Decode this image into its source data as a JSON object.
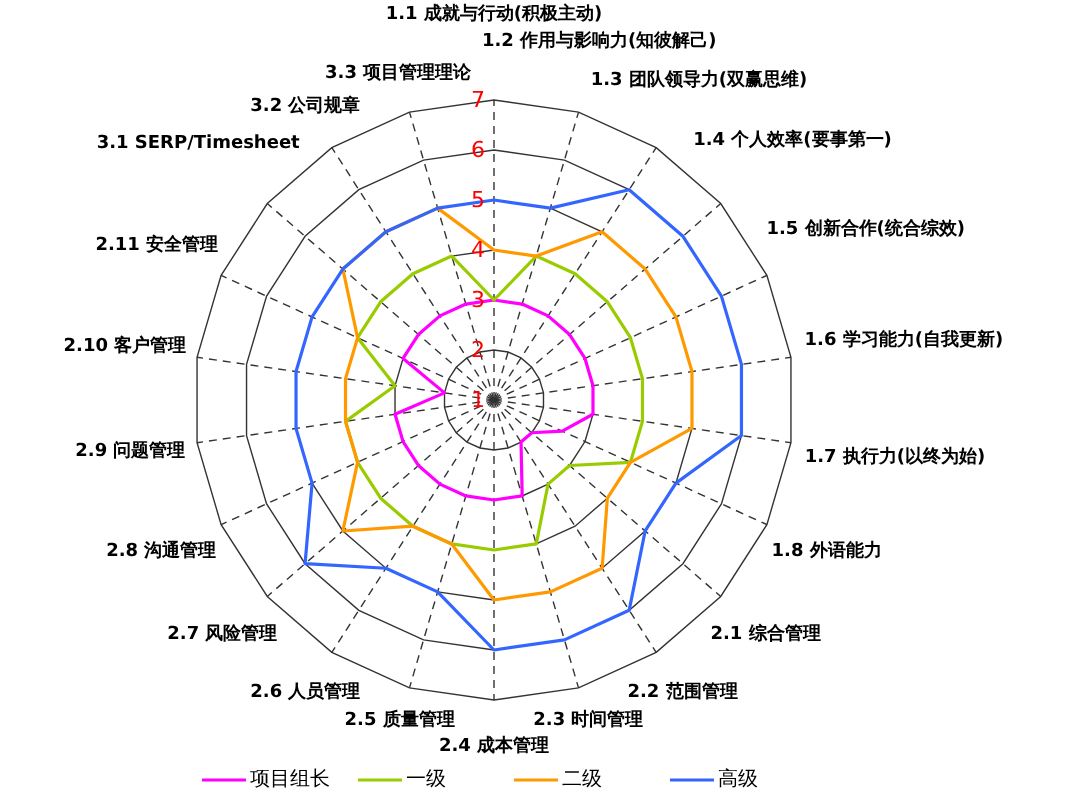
{
  "chart_data": {
    "type": "radar",
    "categories": [
      "1.1 成就与行动(积极主动)",
      "1.2 作用与影响力(知彼解己)",
      "1.3 团队领导力(双赢思维)",
      "1.4 个人效率(要事第一)",
      "1.5 创新合作(统合综效)",
      "1.6 学习能力(自我更新)",
      "1.7 执行力(以终为始)",
      "1.8 外语能力",
      "2.1 综合管理",
      "2.2 范围管理",
      "2.3 时间管理",
      "2.4 成本管理",
      "2.5 质量管理",
      "2.6 人员管理",
      "2.7 风险管理",
      "2.8 沟通管理",
      "2.9 问题管理",
      "2.10 客户管理",
      "2.11 安全管理",
      "3.1 SERP/Timesheet",
      "3.2 公司规章",
      "3.3 项目管理理论"
    ],
    "series": [
      {
        "name": "项目组长",
        "color": "#ff00ff",
        "values": [
          3,
          3,
          3,
          3,
          3,
          3,
          3,
          2.5,
          2,
          2,
          3,
          3,
          3,
          3,
          3,
          3,
          3,
          2,
          3,
          3,
          3,
          3
        ]
      },
      {
        "name": "一级",
        "color": "#99cc00",
        "values": [
          3,
          4,
          4,
          4,
          4,
          4,
          4,
          4,
          3,
          3,
          4,
          4,
          4,
          4,
          4,
          4,
          4,
          3,
          4,
          4,
          4,
          4
        ]
      },
      {
        "name": "二级",
        "color": "#ff9900",
        "values": [
          4,
          4,
          5,
          5,
          5,
          5,
          5,
          4,
          4,
          5,
          5,
          5,
          4,
          4,
          5,
          4,
          4,
          4,
          4,
          5,
          5,
          5
        ]
      },
      {
        "name": "高级",
        "color": "#3366ff",
        "values": [
          5,
          5,
          6,
          6,
          6,
          6,
          6,
          5,
          5,
          6,
          6,
          6,
          5,
          5,
          6,
          5,
          5,
          5,
          5,
          5,
          5,
          5
        ]
      }
    ],
    "ylim": [
      1,
      7
    ],
    "yticks": [
      1,
      2,
      3,
      4,
      5,
      6,
      7
    ],
    "grid": true,
    "legend": "bottom",
    "line_style": "solid"
  }
}
